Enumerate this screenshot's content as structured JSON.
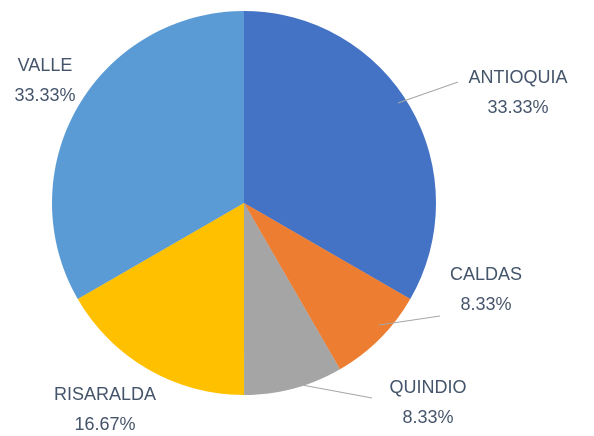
{
  "chart_data": {
    "type": "pie",
    "categories": [
      "ANTIOQUIA",
      "CALDAS",
      "QUINDIO",
      "RISARALDA",
      "VALLE"
    ],
    "values": [
      33.33,
      8.33,
      8.33,
      16.67,
      33.33
    ],
    "value_labels": [
      "33.33%",
      "8.33%",
      "8.33%",
      "16.67%",
      "33.33%"
    ],
    "colors": [
      "#4472c4",
      "#ed7d31",
      "#a5a5a5",
      "#ffc000",
      "#5b9bd5"
    ]
  }
}
